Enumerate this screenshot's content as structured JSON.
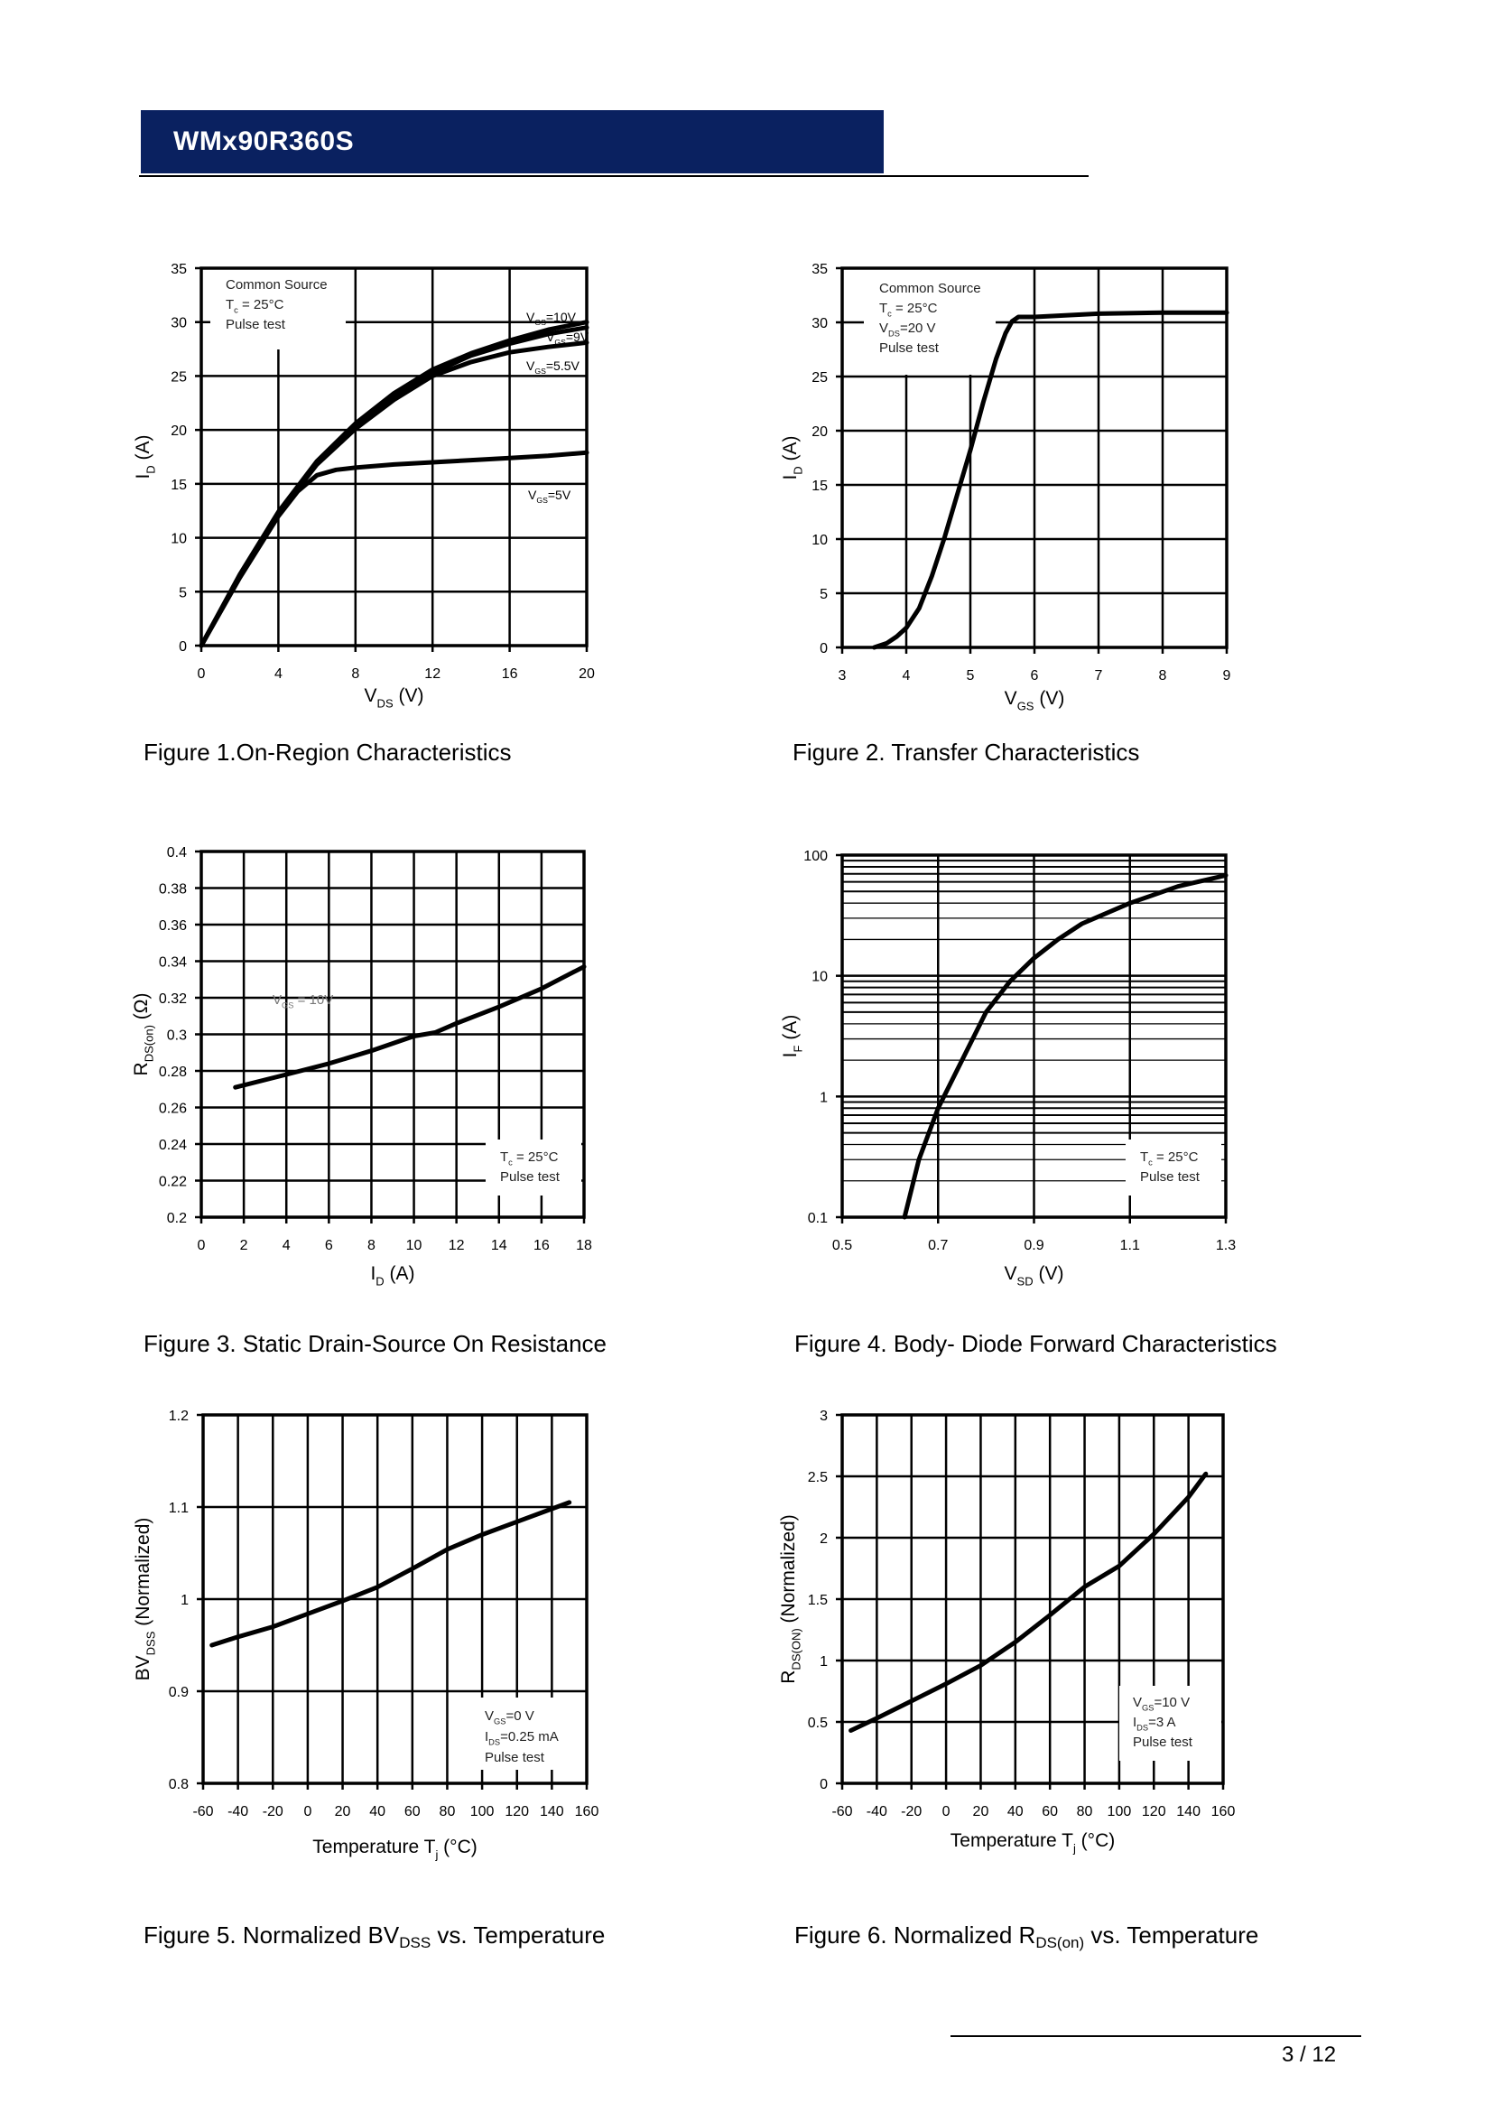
{
  "header": {
    "title": "WMx90R360S",
    "brand_color": "#0a2160"
  },
  "footer": {
    "page": "3 / 12"
  },
  "captions": [
    {
      "text": "Figure 1.On-Region Characteristics"
    },
    {
      "text": "Figure 2. Transfer Characteristics"
    },
    {
      "text": "Figure 3. Static Drain-Source On Resistance"
    },
    {
      "text": "Figure 4. Body- Diode Forward Characteristics"
    },
    {
      "pre": "Figure 5. Normalized BV",
      "sub": "DSS",
      "post": " vs. Temperature"
    },
    {
      "pre": "Figure 6. Normalized R",
      "sub": "DS(on)",
      "post": " vs. Temperature"
    }
  ],
  "chart_data": [
    {
      "type": "line",
      "xlabel": {
        "main": "V",
        "sub": "DS",
        "rest": " (V)"
      },
      "ylabel": {
        "main": "I",
        "sub": "D",
        "rest": " (A)"
      },
      "xlim": [
        0,
        20
      ],
      "ylim": [
        0,
        35
      ],
      "yscale": "linear",
      "xticks": [
        "0",
        "4",
        "8",
        "12",
        "16",
        "20"
      ],
      "yticks": [
        "0",
        "5",
        "10",
        "15",
        "20",
        "25",
        "30",
        "35"
      ],
      "grid": true,
      "annotation": [
        {
          "main": "Common Source"
        },
        {
          "main": "T",
          "sub": "c",
          "rest": " = 25°C"
        },
        {
          "main": "Pulse test"
        }
      ],
      "series": [
        {
          "name": "VGS=10V",
          "label": {
            "main": "V",
            "sub": "GS",
            "rest": "=10V"
          },
          "x": [
            0,
            2,
            4,
            6,
            8,
            10,
            12,
            14,
            16,
            18,
            20
          ],
          "y": [
            0,
            6.6,
            12.4,
            17.1,
            20.6,
            23.4,
            25.6,
            27.1,
            28.3,
            29.3,
            30.0
          ]
        },
        {
          "name": "VGS=9V",
          "label": {
            "main": "V",
            "sub": "GS",
            "rest": "=9V"
          },
          "x": [
            0,
            2,
            4,
            6,
            8,
            10,
            12,
            14,
            16,
            18,
            20
          ],
          "y": [
            0,
            6.5,
            12.3,
            17.0,
            20.4,
            23.2,
            25.3,
            26.9,
            28.0,
            28.9,
            29.5
          ]
        },
        {
          "name": "VGS=5.5V",
          "label": {
            "main": "V",
            "sub": "GS",
            "rest": "=5.5V"
          },
          "x": [
            0,
            2,
            4,
            6,
            8,
            10,
            12,
            14,
            16,
            18,
            20
          ],
          "y": [
            0,
            6.4,
            12.2,
            16.8,
            20.1,
            22.8,
            25.0,
            26.3,
            27.2,
            27.7,
            28.1
          ]
        },
        {
          "name": "VGS=5V",
          "label": {
            "main": "V",
            "sub": "GS",
            "rest": "=5V"
          },
          "x": [
            0,
            2,
            4,
            5,
            6,
            7,
            8,
            10,
            12,
            14,
            16,
            18,
            20
          ],
          "y": [
            0,
            6.3,
            12.0,
            14.3,
            15.8,
            16.3,
            16.5,
            16.8,
            17.0,
            17.2,
            17.4,
            17.6,
            17.9
          ]
        }
      ]
    },
    {
      "type": "line",
      "xlabel": {
        "main": "V",
        "sub": "GS",
        "rest": " (V)"
      },
      "ylabel": {
        "main": "I",
        "sub": "D",
        "rest": " (A)"
      },
      "xlim": [
        3,
        9
      ],
      "ylim": [
        0,
        35
      ],
      "yscale": "linear",
      "xticks": [
        "3",
        "4",
        "5",
        "6",
        "7",
        "8",
        "9"
      ],
      "yticks": [
        "0",
        "5",
        "10",
        "15",
        "20",
        "25",
        "30",
        "35"
      ],
      "grid": true,
      "annotation": [
        {
          "main": "Common Source"
        },
        {
          "main": "T",
          "sub": "c",
          "rest": " = 25°C"
        },
        {
          "main": "V",
          "sub": "DS",
          "rest": "=20 V"
        },
        {
          "main": "Pulse test"
        }
      ],
      "series": [
        {
          "x": [
            3.5,
            3.7,
            3.85,
            4.0,
            4.2,
            4.4,
            4.6,
            4.8,
            5.0,
            5.2,
            5.4,
            5.55,
            5.65,
            5.75,
            6.0,
            7.0,
            8.0,
            9.0
          ],
          "y": [
            0,
            0.4,
            1.0,
            1.8,
            3.6,
            6.6,
            10.2,
            14.2,
            18.2,
            22.6,
            26.6,
            29.0,
            30.1,
            30.5,
            30.5,
            30.8,
            30.9,
            30.9
          ]
        }
      ]
    },
    {
      "type": "line",
      "xlabel": {
        "main": "I",
        "sub": "D",
        "rest": " (A)"
      },
      "ylabel": {
        "main": "R",
        "sub": "DS(on)",
        "rest": " (Ω)"
      },
      "xlim": [
        0,
        18
      ],
      "ylim": [
        0.2,
        0.4
      ],
      "yscale": "linear",
      "xticks": [
        "0",
        "2",
        "4",
        "6",
        "8",
        "10",
        "12",
        "14",
        "16",
        "18"
      ],
      "yticks": [
        "0.2",
        "0.22",
        "0.24",
        "0.26",
        "0.28",
        "0.3",
        "0.32",
        "0.34",
        "0.36",
        "0.38",
        "0.4"
      ],
      "grid": true,
      "inline_label": {
        "main": "V",
        "sub": "GS",
        "rest": " = 10V"
      },
      "annotation": [
        {
          "main": "T",
          "sub": "c",
          "rest": " = 25°C"
        },
        {
          "main": "Pulse test"
        }
      ],
      "series": [
        {
          "x": [
            1.6,
            4,
            6,
            8,
            10,
            11,
            12,
            14,
            16,
            17,
            18
          ],
          "y": [
            0.271,
            0.278,
            0.284,
            0.291,
            0.299,
            0.301,
            0.306,
            0.315,
            0.325,
            0.331,
            0.337
          ]
        }
      ]
    },
    {
      "type": "line",
      "xlabel": {
        "main": "V",
        "sub": "SD",
        "rest": " (V)"
      },
      "ylabel": {
        "main": "I",
        "sub": "F",
        "rest": " (A)"
      },
      "xlim": [
        0.5,
        1.3
      ],
      "ylim": [
        0.1,
        100
      ],
      "yscale": "log",
      "xticks": [
        "0.5",
        "0.7",
        "0.9",
        "1.1",
        "1.3"
      ],
      "yticks": [
        "0.1",
        "1",
        "10",
        "100"
      ],
      "grid": true,
      "annotation": [
        {
          "main": "T",
          "sub": "c",
          "rest": " = 25°C"
        },
        {
          "main": "Pulse test"
        }
      ],
      "series": [
        {
          "x": [
            0.63,
            0.66,
            0.7,
            0.75,
            0.8,
            0.85,
            0.9,
            0.95,
            1.0,
            1.1,
            1.2,
            1.3
          ],
          "y": [
            0.1,
            0.3,
            0.8,
            2,
            5,
            9,
            14,
            20,
            27,
            40,
            55,
            68
          ]
        }
      ]
    },
    {
      "type": "line",
      "xlabel": {
        "main": "Temperature T",
        "sub": "j",
        "rest": " (°C)"
      },
      "ylabel": {
        "main": "BV",
        "sub": "DSS",
        "rest": " (Normalized)"
      },
      "xlim": [
        -60,
        160
      ],
      "ylim": [
        0.8,
        1.2
      ],
      "yscale": "linear",
      "xticks": [
        "-60",
        "-40",
        "-20",
        "0",
        "20",
        "40",
        "60",
        "80",
        "100",
        "120",
        "140",
        "160"
      ],
      "yticks": [
        "0.8",
        "0.9",
        "1",
        "1.1",
        "1.2"
      ],
      "grid": true,
      "annotation": [
        {
          "main": "V",
          "sub": "GS",
          "rest": "=0 V"
        },
        {
          "main": "I",
          "sub": "DS",
          "rest": "=0.25 mA"
        },
        {
          "main": "Pulse test"
        }
      ],
      "series": [
        {
          "x": [
            -55,
            -40,
            -20,
            0,
            20,
            40,
            60,
            80,
            100,
            120,
            140,
            150
          ],
          "y": [
            0.95,
            0.959,
            0.97,
            0.984,
            0.998,
            1.013,
            1.033,
            1.054,
            1.07,
            1.084,
            1.098,
            1.105
          ]
        }
      ]
    },
    {
      "type": "line",
      "xlabel": {
        "main": "Temperature T",
        "sub": "j",
        "rest": " (°C)"
      },
      "ylabel": {
        "main": "R",
        "sub": "DS(ON)",
        "rest": " (Normalized)"
      },
      "xlim": [
        -60,
        160
      ],
      "ylim": [
        0,
        3
      ],
      "yscale": "linear",
      "xticks": [
        "-60",
        "-40",
        "-20",
        "0",
        "20",
        "40",
        "60",
        "80",
        "100",
        "120",
        "140",
        "160"
      ],
      "yticks": [
        "0",
        "0.5",
        "1",
        "1.5",
        "2",
        "2.5",
        "3"
      ],
      "grid": true,
      "annotation": [
        {
          "main": "V",
          "sub": "GS",
          "rest": "=10 V"
        },
        {
          "main": "I",
          "sub": "DS",
          "rest": "=3 A"
        },
        {
          "main": "Pulse test"
        }
      ],
      "series": [
        {
          "x": [
            -55,
            -40,
            -20,
            0,
            20,
            40,
            60,
            80,
            100,
            120,
            140,
            150
          ],
          "y": [
            0.43,
            0.53,
            0.67,
            0.81,
            0.96,
            1.15,
            1.37,
            1.6,
            1.77,
            2.03,
            2.33,
            2.52
          ]
        }
      ]
    }
  ]
}
